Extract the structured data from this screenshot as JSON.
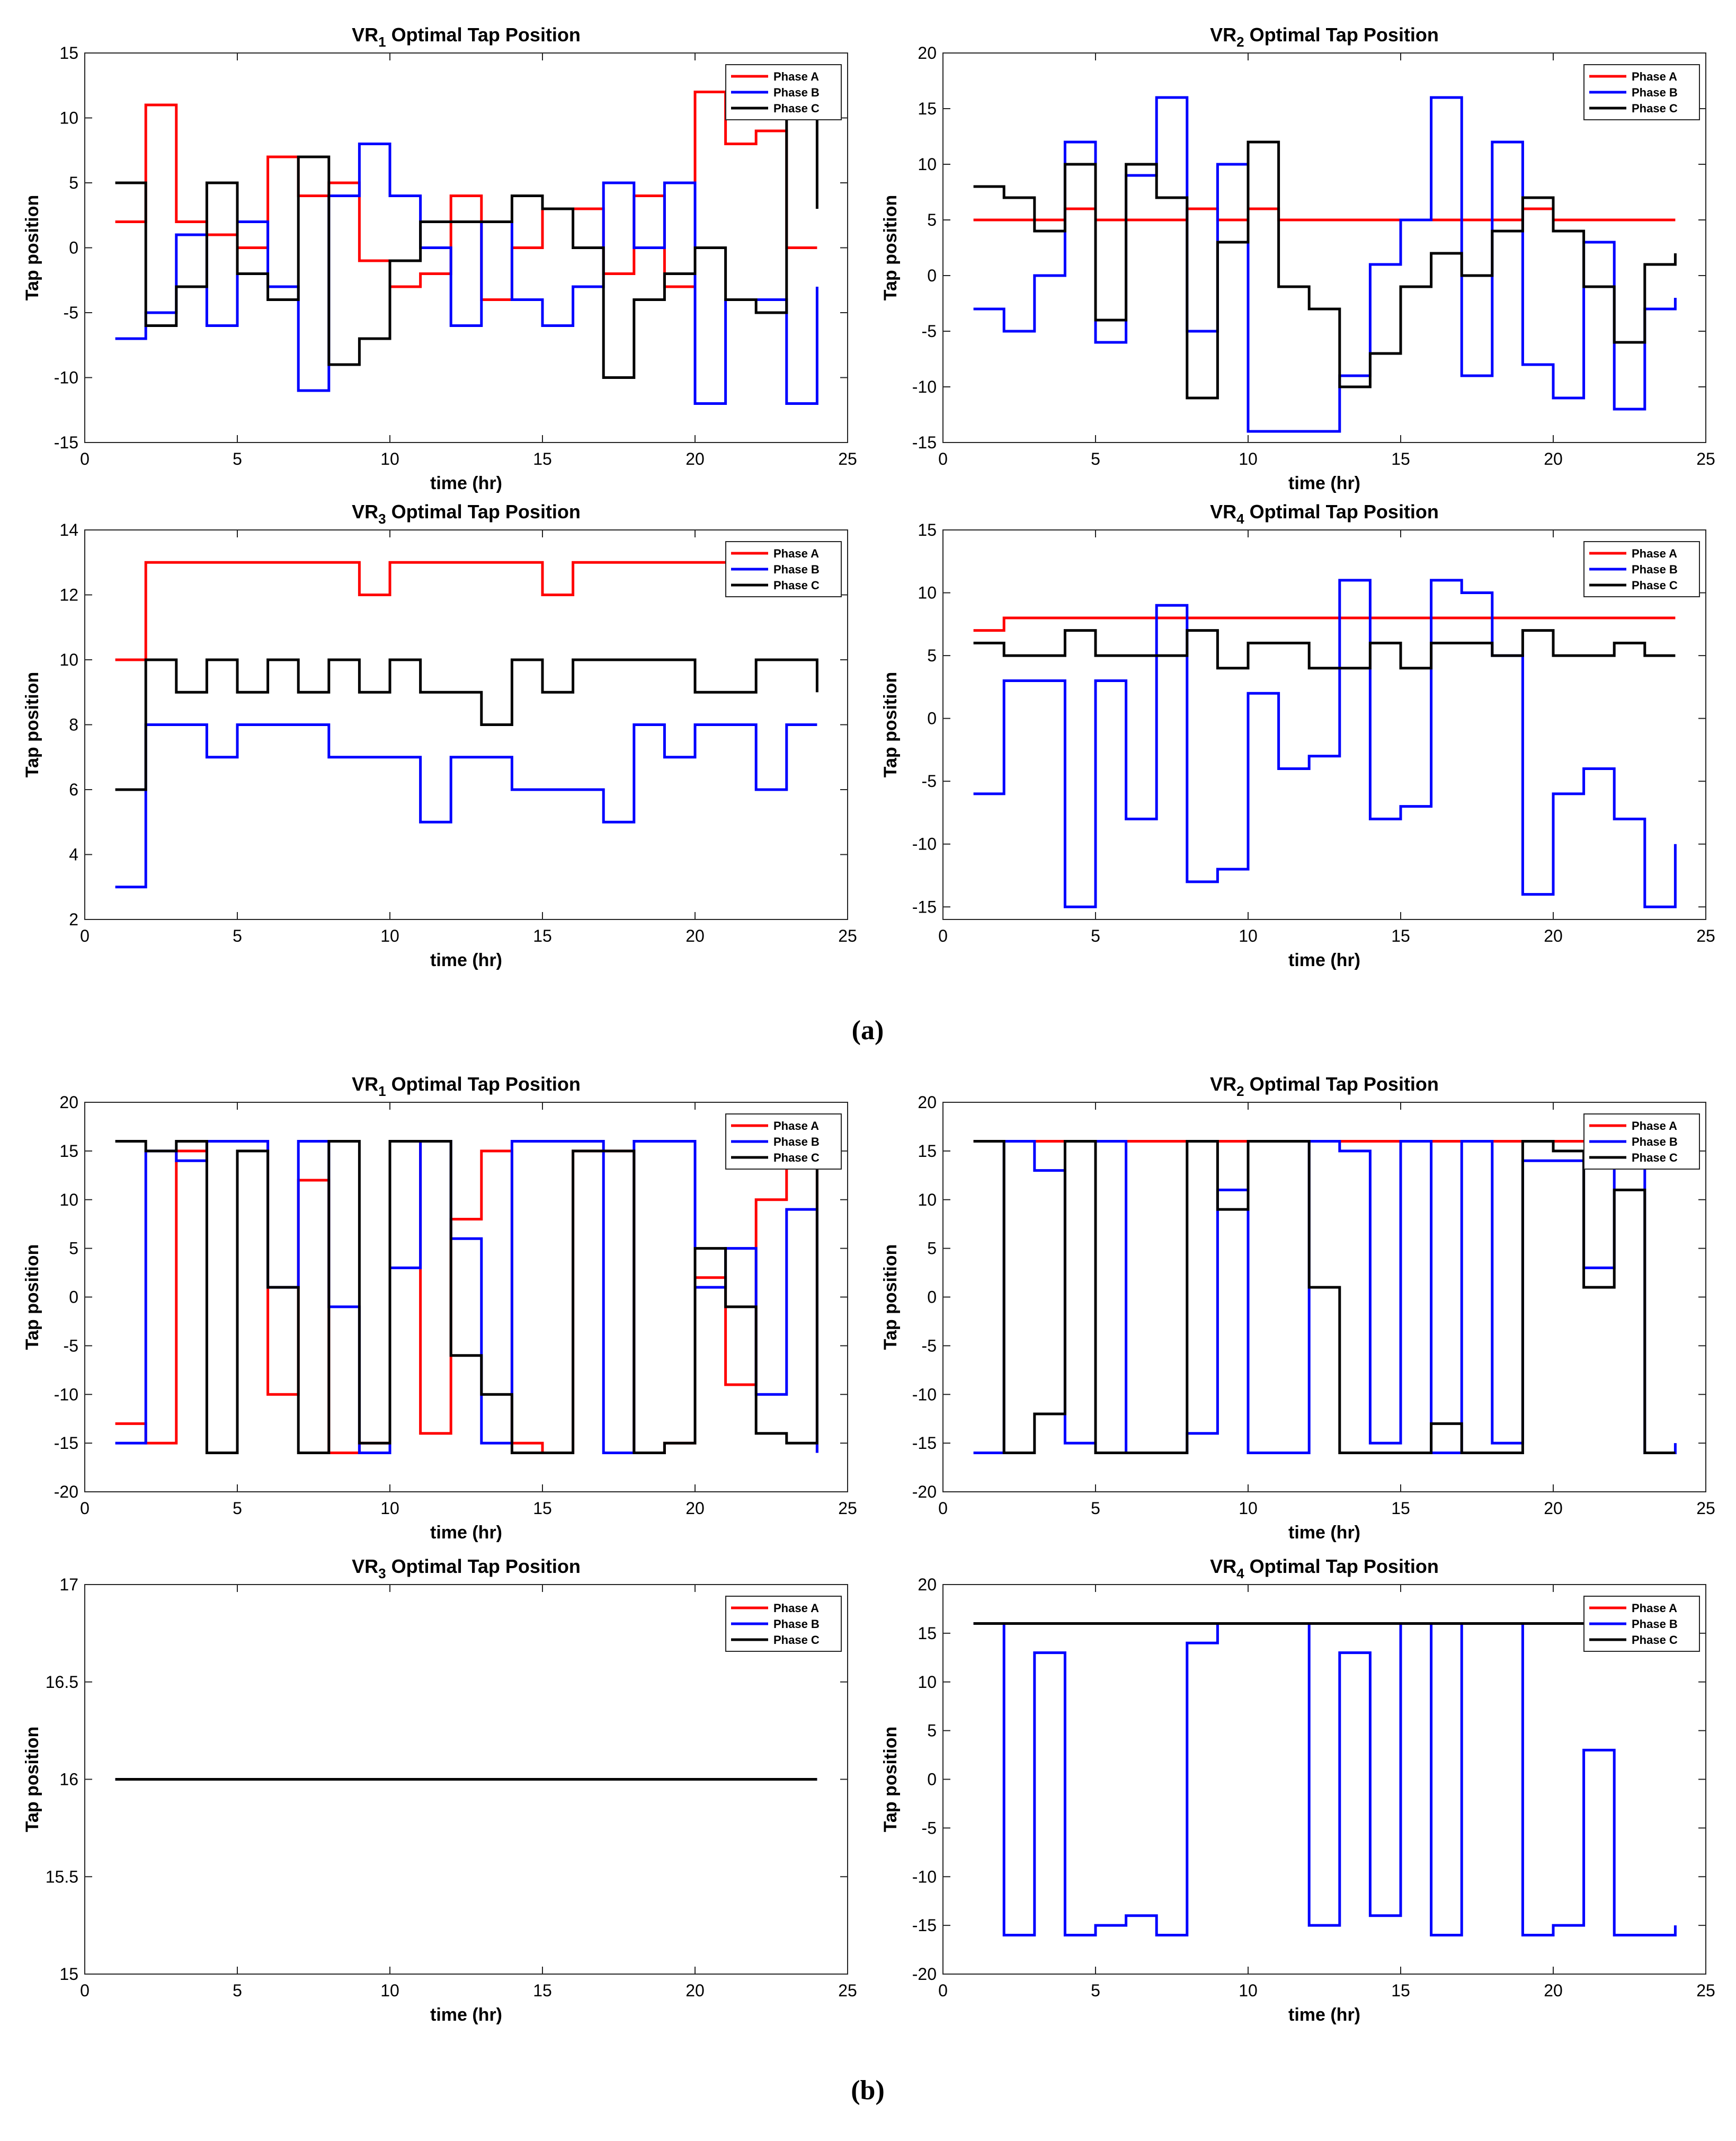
{
  "figure_labels": [
    "(a)",
    "(b)"
  ],
  "legend_labels": [
    "Phase A",
    "Phase B",
    "Phase C"
  ],
  "colors": {
    "phase_a": "#ff0000",
    "phase_b": "#0000ff",
    "phase_c": "#000000",
    "axis": "#262626"
  },
  "chart_data": [
    {
      "id": "a1",
      "type": "line",
      "step": true,
      "title": "VR",
      "title_sub": "1",
      "title_rest": " Optimal Tap Position",
      "xlabel": "time (hr)",
      "ylabel": "Tap position",
      "xlim": [
        0,
        25
      ],
      "ylim": [
        -15,
        15
      ],
      "xticks": [
        0,
        5,
        10,
        15,
        20,
        25
      ],
      "yticks": [
        -15,
        -10,
        -5,
        0,
        5,
        10,
        15
      ],
      "series": [
        {
          "name": "Phase A",
          "color": "#ff0000",
          "values": [
            2,
            11,
            2,
            1,
            0,
            7,
            4,
            5,
            -1,
            -3,
            -2,
            4,
            -4,
            0,
            3,
            3,
            -2,
            4,
            -3,
            12,
            8,
            9,
            0,
            0
          ]
        },
        {
          "name": "Phase B",
          "color": "#0000ff",
          "values": [
            -7,
            -5,
            1,
            -6,
            2,
            -3,
            -11,
            4,
            8,
            4,
            0,
            -6,
            2,
            -4,
            -6,
            -3,
            5,
            0,
            5,
            -12,
            -4,
            -4,
            -12,
            -3
          ]
        },
        {
          "name": "Phase C",
          "color": "#000000",
          "values": [
            5,
            -6,
            -3,
            5,
            -2,
            -4,
            7,
            -9,
            -7,
            -1,
            2,
            2,
            2,
            4,
            3,
            0,
            -10,
            -4,
            -2,
            0,
            -4,
            -5,
            11,
            3
          ]
        }
      ]
    },
    {
      "id": "a2",
      "type": "line",
      "step": true,
      "title": "VR",
      "title_sub": "2",
      "title_rest": " Optimal Tap Position",
      "xlabel": "time (hr)",
      "ylabel": "Tap position",
      "xlim": [
        0,
        25
      ],
      "ylim": [
        -15,
        20
      ],
      "xticks": [
        0,
        5,
        10,
        15,
        20,
        25
      ],
      "yticks": [
        -15,
        -10,
        -5,
        0,
        5,
        10,
        15,
        20
      ],
      "series": [
        {
          "name": "Phase A",
          "color": "#ff0000",
          "values": [
            5,
            5,
            5,
            6,
            5,
            5,
            5,
            6,
            5,
            6,
            5,
            5,
            5,
            5,
            5,
            5,
            5,
            5,
            6,
            5,
            5,
            5,
            5,
            5
          ]
        },
        {
          "name": "Phase B",
          "color": "#0000ff",
          "values": [
            -3,
            -5,
            0,
            12,
            -6,
            9,
            16,
            -5,
            10,
            -14,
            -14,
            -14,
            -9,
            1,
            5,
            16,
            -9,
            12,
            -8,
            -11,
            3,
            -12,
            -3,
            -2
          ]
        },
        {
          "name": "Phase C",
          "color": "#000000",
          "values": [
            8,
            7,
            4,
            10,
            -4,
            10,
            7,
            -11,
            3,
            12,
            -1,
            -3,
            -10,
            -7,
            -1,
            2,
            0,
            4,
            7,
            4,
            -1,
            -6,
            1,
            2
          ]
        }
      ]
    },
    {
      "id": "a3",
      "type": "line",
      "step": true,
      "title": "VR",
      "title_sub": "3",
      "title_rest": " Optimal Tap Position",
      "xlabel": "time (hr)",
      "ylabel": "Tap position",
      "xlim": [
        0,
        25
      ],
      "ylim": [
        2,
        14
      ],
      "xticks": [
        0,
        5,
        10,
        15,
        20,
        25
      ],
      "yticks": [
        2,
        4,
        6,
        8,
        10,
        12,
        14
      ],
      "series": [
        {
          "name": "Phase A",
          "color": "#ff0000",
          "values": [
            10,
            13,
            13,
            13,
            13,
            13,
            13,
            13,
            12,
            13,
            13,
            13,
            13,
            13,
            12,
            13,
            13,
            13,
            13,
            13,
            13,
            13,
            13,
            13
          ]
        },
        {
          "name": "Phase B",
          "color": "#0000ff",
          "values": [
            3,
            8,
            8,
            7,
            8,
            8,
            8,
            7,
            7,
            7,
            5,
            7,
            7,
            6,
            6,
            6,
            5,
            8,
            7,
            8,
            8,
            6,
            8,
            8
          ]
        },
        {
          "name": "Phase C",
          "color": "#000000",
          "values": [
            6,
            10,
            9,
            10,
            9,
            10,
            9,
            10,
            9,
            10,
            9,
            9,
            8,
            10,
            9,
            10,
            10,
            10,
            10,
            9,
            9,
            10,
            10,
            9
          ]
        }
      ]
    },
    {
      "id": "a4",
      "type": "line",
      "step": true,
      "title": "VR",
      "title_sub": "4",
      "title_rest": " Optimal Tap Position",
      "xlabel": "time (hr)",
      "ylabel": "Tap position",
      "xlim": [
        0,
        25
      ],
      "ylim": [
        -16,
        15
      ],
      "xticks": [
        0,
        5,
        10,
        15,
        20,
        25
      ],
      "yticks": [
        -15,
        -10,
        -5,
        0,
        5,
        10,
        15
      ],
      "series": [
        {
          "name": "Phase A",
          "color": "#ff0000",
          "values": [
            7,
            8,
            8,
            8,
            8,
            8,
            8,
            8,
            8,
            8,
            8,
            8,
            8,
            8,
            8,
            8,
            8,
            8,
            8,
            8,
            8,
            8,
            8,
            8
          ]
        },
        {
          "name": "Phase B",
          "color": "#0000ff",
          "values": [
            -6,
            3,
            3,
            -15,
            3,
            -8,
            9,
            -13,
            -12,
            2,
            -4,
            -3,
            11,
            -8,
            -7,
            11,
            10,
            5,
            -14,
            -6,
            -4,
            -8,
            -15,
            -10
          ]
        },
        {
          "name": "Phase C",
          "color": "#000000",
          "values": [
            6,
            5,
            5,
            7,
            5,
            5,
            5,
            7,
            4,
            6,
            6,
            4,
            4,
            6,
            4,
            6,
            6,
            5,
            7,
            5,
            5,
            6,
            5,
            5
          ]
        }
      ]
    },
    {
      "id": "b1",
      "type": "line",
      "step": true,
      "title": "VR",
      "title_sub": "1",
      "title_rest": " Optimal Tap Position",
      "xlabel": "time (hr)",
      "ylabel": "Tap position",
      "xlim": [
        0,
        25
      ],
      "ylim": [
        -20,
        20
      ],
      "xticks": [
        0,
        5,
        10,
        15,
        20,
        25
      ],
      "yticks": [
        -20,
        -15,
        -10,
        -5,
        0,
        5,
        10,
        15,
        20
      ],
      "series": [
        {
          "name": "Phase A",
          "color": "#ff0000",
          "values": [
            -13,
            -15,
            15,
            16,
            16,
            -10,
            12,
            -16,
            -15,
            16,
            -14,
            8,
            15,
            -15,
            -16,
            15,
            15,
            -16,
            -15,
            2,
            -9,
            10,
            15,
            -16
          ]
        },
        {
          "name": "Phase B",
          "color": "#0000ff",
          "values": [
            -15,
            15,
            14,
            16,
            16,
            1,
            16,
            -1,
            -16,
            3,
            16,
            6,
            -15,
            16,
            16,
            16,
            -16,
            16,
            16,
            1,
            5,
            -10,
            9,
            -16
          ]
        },
        {
          "name": "Phase C",
          "color": "#000000",
          "values": [
            16,
            15,
            16,
            -16,
            15,
            1,
            -16,
            16,
            -15,
            16,
            16,
            -6,
            -10,
            -16,
            -16,
            15,
            15,
            -16,
            -15,
            5,
            -1,
            -14,
            -15,
            15
          ]
        }
      ]
    },
    {
      "id": "b2",
      "type": "line",
      "step": true,
      "title": "VR",
      "title_sub": "2",
      "title_rest": " Optimal Tap Position",
      "xlabel": "time (hr)",
      "ylabel": "Tap position",
      "xlim": [
        0,
        25
      ],
      "ylim": [
        -20,
        20
      ],
      "xticks": [
        0,
        5,
        10,
        15,
        20,
        25
      ],
      "yticks": [
        -20,
        -15,
        -10,
        -5,
        0,
        5,
        10,
        15,
        20
      ],
      "series": [
        {
          "name": "Phase A",
          "color": "#ff0000",
          "values": [
            16,
            16,
            16,
            16,
            16,
            16,
            16,
            16,
            16,
            16,
            16,
            16,
            16,
            16,
            16,
            16,
            16,
            16,
            16,
            16,
            16,
            16,
            16,
            16
          ]
        },
        {
          "name": "Phase B",
          "color": "#0000ff",
          "values": [
            -16,
            16,
            13,
            -15,
            16,
            -16,
            -16,
            -14,
            11,
            -16,
            -16,
            16,
            15,
            -15,
            16,
            -16,
            16,
            -15,
            14,
            14,
            3,
            16,
            -16,
            -15
          ]
        },
        {
          "name": "Phase C",
          "color": "#000000",
          "values": [
            16,
            -16,
            -12,
            16,
            -16,
            -16,
            -16,
            16,
            9,
            16,
            16,
            1,
            -16,
            -16,
            -16,
            -13,
            -16,
            -16,
            16,
            15,
            1,
            11,
            -16,
            -16
          ]
        }
      ]
    },
    {
      "id": "b3",
      "type": "line",
      "step": true,
      "title": "VR",
      "title_sub": "3",
      "title_rest": " Optimal Tap Position",
      "xlabel": "time (hr)",
      "ylabel": "Tap position",
      "xlim": [
        0,
        25
      ],
      "ylim": [
        15,
        17
      ],
      "xticks": [
        0,
        5,
        10,
        15,
        20,
        25
      ],
      "yticks": [
        15,
        15.5,
        16,
        16.5,
        17
      ],
      "series": [
        {
          "name": "Phase A",
          "color": "#ff0000",
          "values": [
            16,
            16,
            16,
            16,
            16,
            16,
            16,
            16,
            16,
            16,
            16,
            16,
            16,
            16,
            16,
            16,
            16,
            16,
            16,
            16,
            16,
            16,
            16,
            16
          ]
        },
        {
          "name": "Phase B",
          "color": "#0000ff",
          "values": [
            16,
            16,
            16,
            16,
            16,
            16,
            16,
            16,
            16,
            16,
            16,
            16,
            16,
            16,
            16,
            16,
            16,
            16,
            16,
            16,
            16,
            16,
            16,
            16
          ]
        },
        {
          "name": "Phase C",
          "color": "#000000",
          "values": [
            16,
            16,
            16,
            16,
            16,
            16,
            16,
            16,
            16,
            16,
            16,
            16,
            16,
            16,
            16,
            16,
            16,
            16,
            16,
            16,
            16,
            16,
            16,
            16
          ]
        }
      ]
    },
    {
      "id": "b4",
      "type": "line",
      "step": true,
      "title": "VR",
      "title_sub": "4",
      "title_rest": " Optimal Tap Position",
      "xlabel": "time (hr)",
      "ylabel": "Tap position",
      "xlim": [
        0,
        25
      ],
      "ylim": [
        -20,
        20
      ],
      "xticks": [
        0,
        5,
        10,
        15,
        20,
        25
      ],
      "yticks": [
        -20,
        -15,
        -10,
        -5,
        0,
        5,
        10,
        15,
        20
      ],
      "series": [
        {
          "name": "Phase A",
          "color": "#ff0000",
          "values": [
            16,
            16,
            16,
            16,
            16,
            16,
            16,
            16,
            16,
            16,
            16,
            16,
            16,
            16,
            16,
            16,
            16,
            16,
            16,
            16,
            16,
            16,
            16,
            16
          ]
        },
        {
          "name": "Phase B",
          "color": "#0000ff",
          "values": [
            16,
            -16,
            13,
            -16,
            -15,
            -14,
            -16,
            14,
            16,
            16,
            16,
            -15,
            13,
            -14,
            16,
            -16,
            16,
            16,
            -16,
            -15,
            3,
            -16,
            -16,
            -15
          ]
        },
        {
          "name": "Phase C",
          "color": "#000000",
          "values": [
            16,
            16,
            16,
            16,
            16,
            16,
            16,
            16,
            16,
            16,
            16,
            16,
            16,
            16,
            16,
            16,
            16,
            16,
            16,
            16,
            16,
            16,
            16,
            16
          ]
        }
      ]
    }
  ]
}
